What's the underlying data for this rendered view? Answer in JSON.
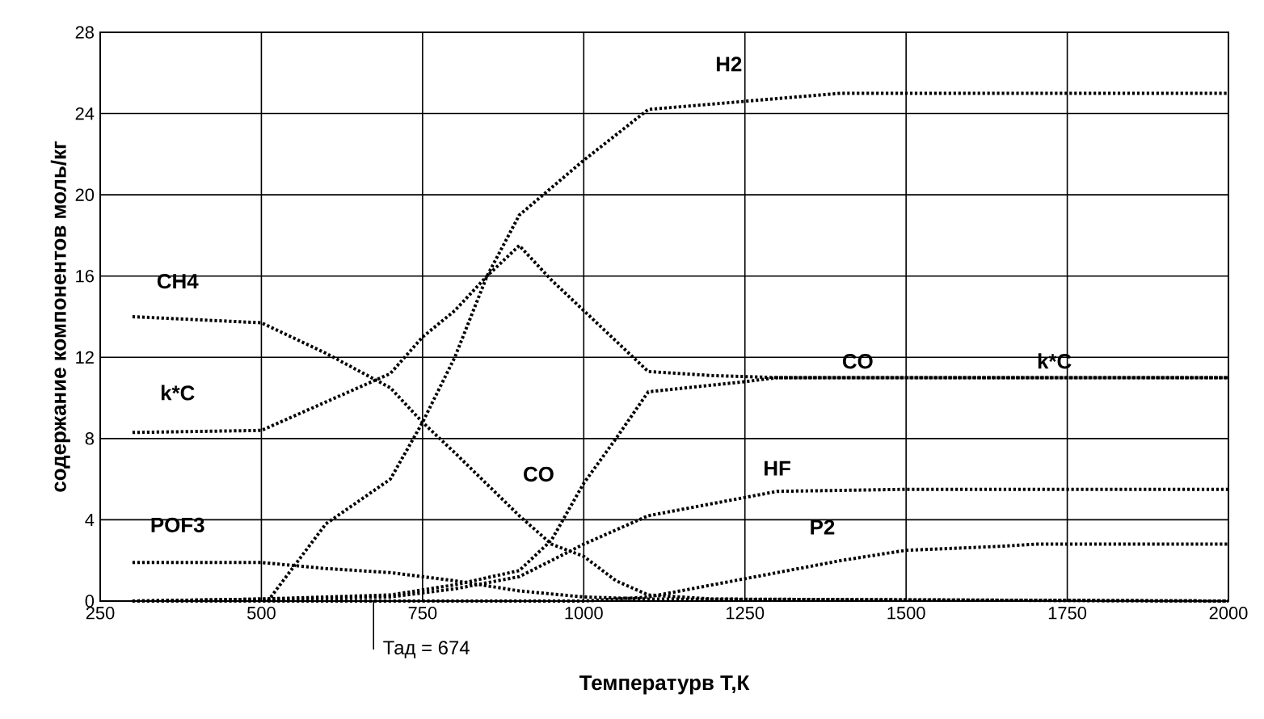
{
  "chart_data": {
    "type": "line",
    "xlabel": "Температурв Т,К",
    "ylabel": "содержание компонентов моль/кг",
    "xlim": [
      250,
      2000
    ],
    "ylim": [
      0,
      28
    ],
    "xticks": [
      250,
      500,
      750,
      1000,
      1250,
      1500,
      1750,
      2000
    ],
    "yticks": [
      0,
      4,
      8,
      12,
      16,
      20,
      24,
      28
    ],
    "grid": true,
    "line_style": "dotted",
    "marker": "none",
    "series": [
      {
        "name": "H2",
        "color": "#000000",
        "x": [
          510,
          600,
          700,
          750,
          800,
          850,
          900,
          1000,
          1100,
          1250,
          1400,
          2000
        ],
        "values": [
          0,
          3.8,
          6,
          8.8,
          12,
          16,
          19,
          21.7,
          24.2,
          24.6,
          25,
          25
        ]
      },
      {
        "name": "k*C",
        "color": "#000000",
        "x": [
          300,
          500,
          600,
          700,
          750,
          800,
          850,
          900,
          950,
          1000,
          1050,
          1100,
          1200,
          1300,
          1500,
          2000
        ],
        "values": [
          8.3,
          8.4,
          9.8,
          11.2,
          13,
          14.3,
          16,
          17.5,
          15.8,
          14.3,
          12.8,
          11.3,
          11.1,
          11,
          11,
          11
        ]
      },
      {
        "name": "CH4",
        "color": "#000000",
        "x": [
          300,
          500,
          600,
          700,
          750,
          800,
          900,
          950,
          1000,
          1050,
          1100,
          1200,
          2000
        ],
        "values": [
          14,
          13.7,
          12.2,
          10.5,
          8.8,
          7.3,
          4.2,
          2.8,
          2.2,
          1,
          0.3,
          0.1,
          0
        ]
      },
      {
        "name": "CO",
        "color": "#000000",
        "x": [
          300,
          500,
          700,
          800,
          900,
          950,
          1000,
          1050,
          1100,
          1250,
          1300,
          2000
        ],
        "values": [
          0,
          0.1,
          0.3,
          0.8,
          1.5,
          3,
          5.8,
          8,
          10.3,
          10.8,
          11,
          11
        ]
      },
      {
        "name": "HF",
        "color": "#000000",
        "x": [
          300,
          700,
          800,
          900,
          1000,
          1100,
          1200,
          1300,
          1500,
          2000
        ],
        "values": [
          0,
          0.2,
          0.6,
          1.2,
          2.8,
          4.2,
          4.8,
          5.4,
          5.5,
          5.5
        ]
      },
      {
        "name": "P2",
        "color": "#000000",
        "x": [
          300,
          1000,
          1100,
          1200,
          1300,
          1400,
          1500,
          1650,
          1700,
          2000
        ],
        "values": [
          0,
          0,
          0.2,
          0.8,
          1.4,
          2,
          2.5,
          2.7,
          2.8,
          2.8
        ]
      },
      {
        "name": "POF3",
        "color": "#000000",
        "x": [
          300,
          500,
          600,
          700,
          750,
          800,
          900,
          1000,
          1100,
          2000
        ],
        "values": [
          1.9,
          1.9,
          1.6,
          1.4,
          1.2,
          1,
          0.5,
          0.2,
          0.1,
          0
        ]
      }
    ],
    "annotations": [
      {
        "text": "CO",
        "x": 1425,
        "y": 11
      },
      {
        "text": "k*C",
        "x": 1730,
        "y": 11
      }
    ],
    "ref_lines": [
      {
        "axis": "x",
        "value": 674,
        "label": "Тад = 674"
      }
    ]
  }
}
